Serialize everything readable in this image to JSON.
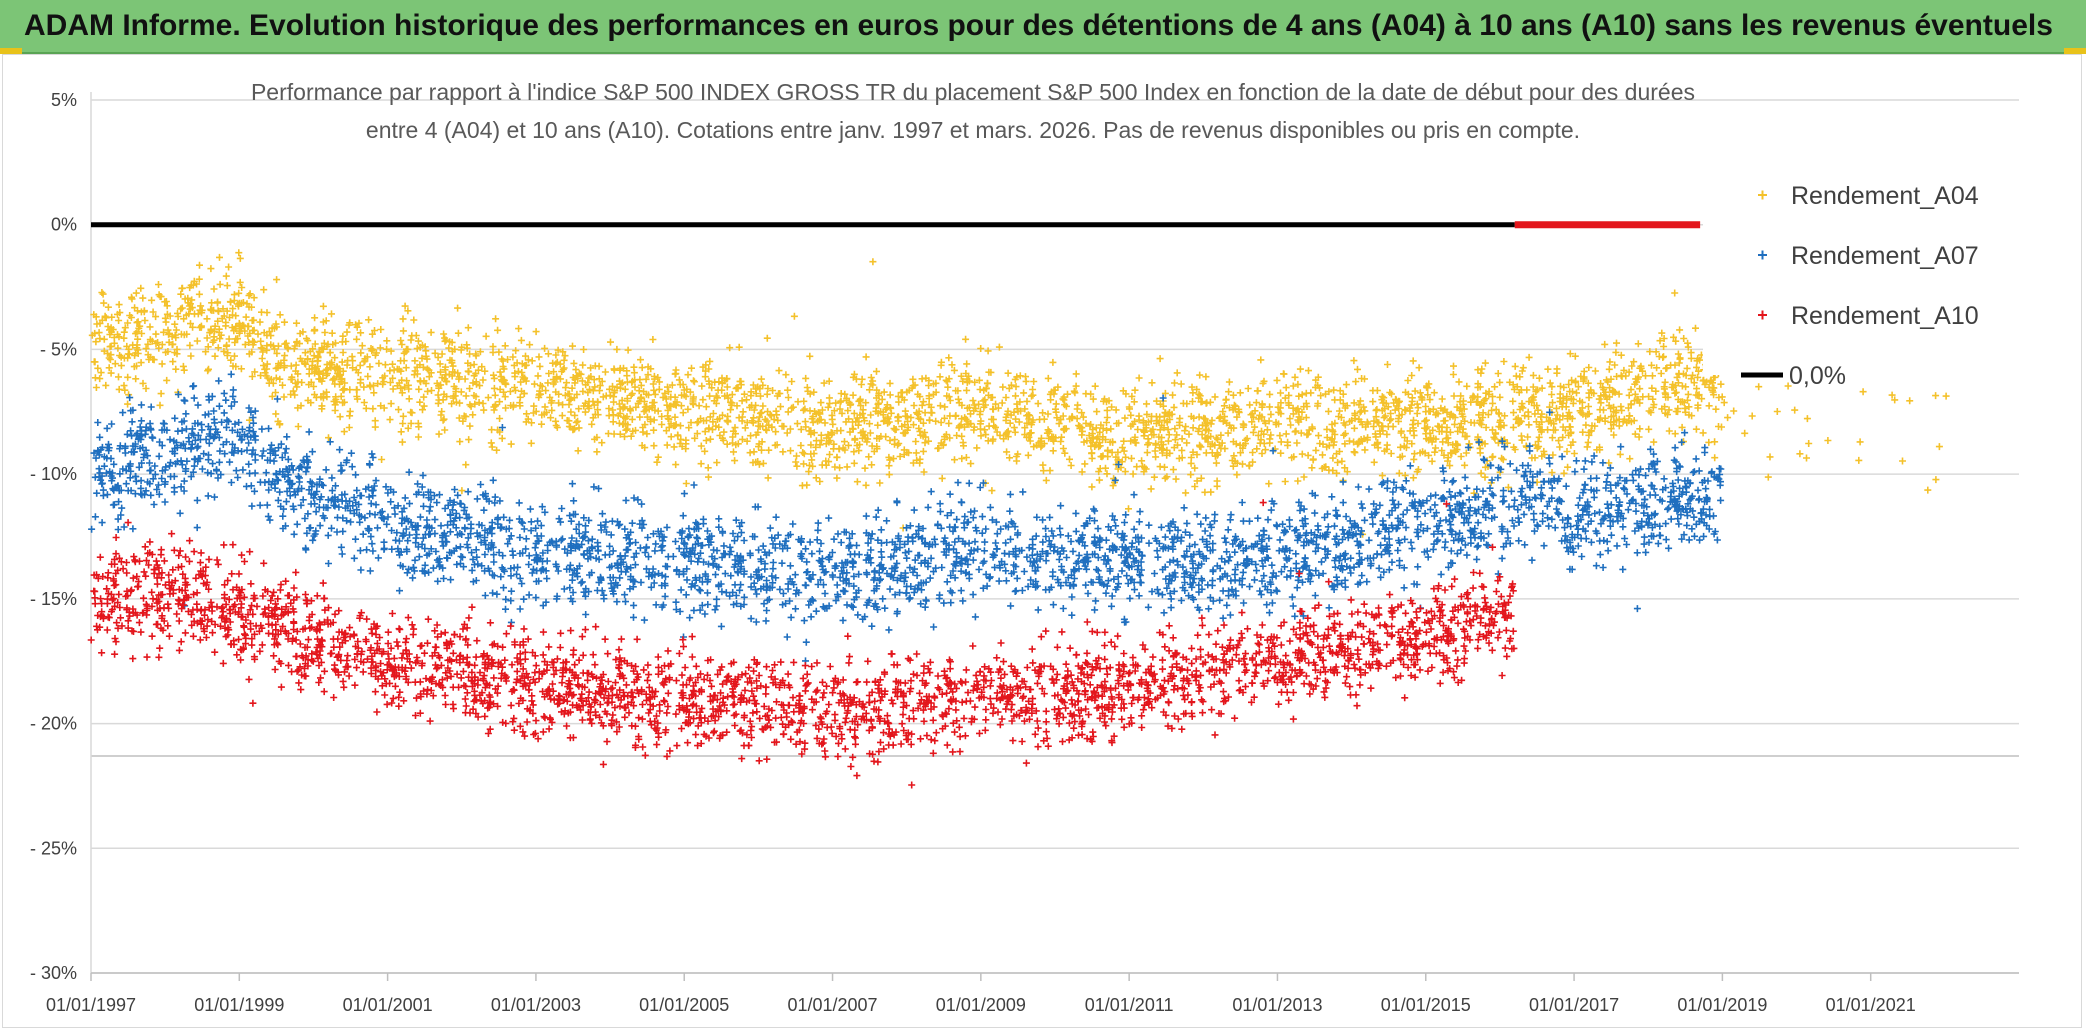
{
  "header": {
    "title": "ADAM Informe. Evolution historique des performances en euros pour des détentions de 4 ans (A04) à 10 ans (A10) sans les revenus éventuels"
  },
  "colors": {
    "banner": "#7cc576",
    "a04": "#f4c12a",
    "a07": "#1f6fbf",
    "a10": "#e3161c",
    "zero_line": "#000000",
    "zero_line_tail": "#e3161c",
    "grid": "#d9d9d9"
  },
  "chart_data": {
    "type": "scatter",
    "title_lines": [
      "Performance par rapport à l'indice S&P 500 INDEX GROSS TR  du placement S&P 500 Index en fonction de la date de début pour des durées",
      "entre 4 (A04) et 10 ans (A10). Cotations entre janv. 1997 et mars. 2026. Pas de revenus disponibles ou pris en compte."
    ],
    "xlabel": "",
    "ylabel": "",
    "x_domain_years": [
      1997.0,
      2023.0
    ],
    "ylim": [
      -30,
      5
    ],
    "y_ticks": [
      5,
      0,
      -5,
      -10,
      -15,
      -20,
      -25,
      -30
    ],
    "y_tick_labels": [
      "5%",
      "0%",
      "- 5%",
      "- 10%",
      "- 15%",
      "- 20%",
      "- 25%",
      "- 30%"
    ],
    "x_ticks": [
      1997,
      1999,
      2001,
      2003,
      2005,
      2007,
      2009,
      2011,
      2013,
      2015,
      2017,
      2019,
      2021
    ],
    "x_tick_labels": [
      "01/01/1997",
      "01/01/1999",
      "01/01/2001",
      "01/01/2003",
      "01/01/2005",
      "01/01/2007",
      "01/01/2009",
      "01/01/2011",
      "01/01/2013",
      "01/01/2015",
      "01/01/2017",
      "01/01/2019",
      "01/01/2021"
    ],
    "grid": "horizontal",
    "legend_position": "right",
    "legend": [
      {
        "label": "Rendement_A04",
        "marker": "plus",
        "color": "#f4c12a"
      },
      {
        "label": "Rendement_A07",
        "marker": "plus",
        "color": "#1f6fbf"
      },
      {
        "label": "Rendement_A10",
        "marker": "plus",
        "color": "#e3161c"
      },
      {
        "label": "0,0%",
        "marker": "line",
        "color": "#000000"
      }
    ],
    "series": [
      {
        "name": "Rendement_A04",
        "x_range": [
          1997.0,
          2022.2
        ],
        "trend": [
          [
            1997.0,
            -4.8
          ],
          [
            1998.0,
            -4.5
          ],
          [
            1998.8,
            -3.5
          ],
          [
            1999.5,
            -5.5
          ],
          [
            2001.0,
            -6.0
          ],
          [
            2003.0,
            -6.5
          ],
          [
            2005.0,
            -7.5
          ],
          [
            2007.0,
            -8.0
          ],
          [
            2009.0,
            -7.5
          ],
          [
            2011.0,
            -8.5
          ],
          [
            2013.0,
            -8.0
          ],
          [
            2015.0,
            -8.0
          ],
          [
            2017.0,
            -7.5
          ],
          [
            2018.5,
            -6.0
          ],
          [
            2019.5,
            -8.0
          ],
          [
            2022.2,
            -8.5
          ]
        ],
        "spread": 1.5
      },
      {
        "name": "Rendement_A07",
        "x_range": [
          1997.0,
          2019.0
        ],
        "trend": [
          [
            1997.0,
            -10.0
          ],
          [
            1998.8,
            -8.5
          ],
          [
            2000.0,
            -11.0
          ],
          [
            2001.0,
            -12.0
          ],
          [
            2003.0,
            -13.0
          ],
          [
            2005.0,
            -13.5
          ],
          [
            2007.0,
            -14.0
          ],
          [
            2009.0,
            -13.0
          ],
          [
            2011.0,
            -13.5
          ],
          [
            2013.0,
            -13.5
          ],
          [
            2015.0,
            -12.0
          ],
          [
            2016.2,
            -11.0
          ],
          [
            2017.0,
            -11.5
          ],
          [
            2019.0,
            -11.0
          ]
        ],
        "spread": 1.5
      },
      {
        "name": "Rendement_A10",
        "x_range": [
          1997.0,
          2016.2
        ],
        "trend": [
          [
            1997.0,
            -15.0
          ],
          [
            1998.0,
            -14.5
          ],
          [
            1999.5,
            -16.0
          ],
          [
            2001.0,
            -17.5
          ],
          [
            2003.0,
            -18.5
          ],
          [
            2005.0,
            -19.0
          ],
          [
            2007.0,
            -19.5
          ],
          [
            2009.0,
            -19.0
          ],
          [
            2011.0,
            -18.5
          ],
          [
            2013.0,
            -17.5
          ],
          [
            2015.0,
            -16.5
          ],
          [
            2016.2,
            -15.5
          ]
        ],
        "spread": 1.4
      },
      {
        "name": "0,0%",
        "x_range": [
          1997.0,
          2023.0
        ],
        "value": 0,
        "black_until": 2016.2,
        "red_from": 2016.2,
        "red_until": 2018.7
      }
    ]
  }
}
